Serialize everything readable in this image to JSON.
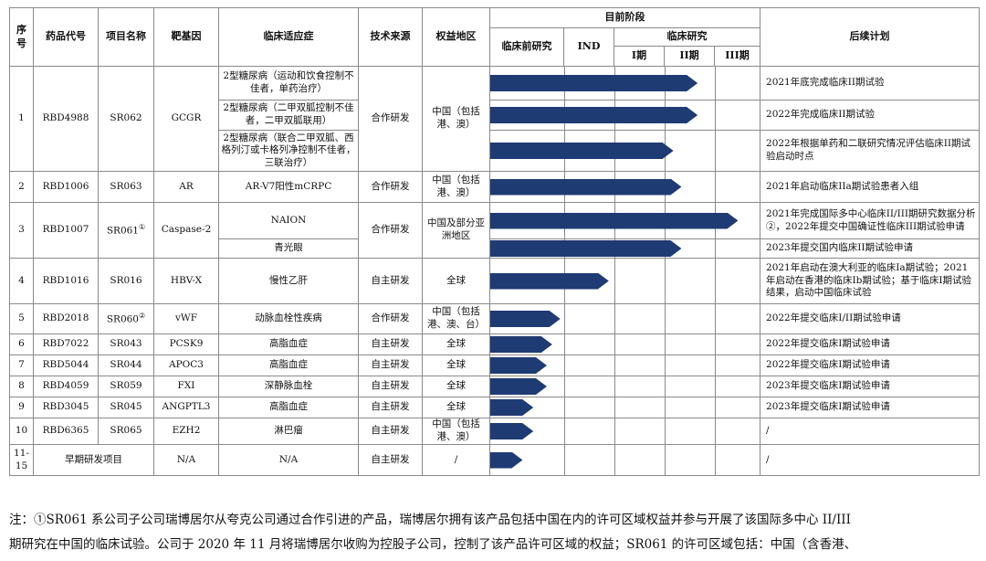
{
  "header": {
    "seq": "序号",
    "drug_code": "药品代号",
    "project_name": "项目名称",
    "target": "靶基因",
    "indication": "临床适应症",
    "tech_source": "技术来源",
    "rights_region": "权益地区",
    "current_stage": "目前阶段",
    "preclinical": "临床前研究",
    "ind": "IND",
    "clinical": "临床研究",
    "phase1": "I期",
    "phase2": "II期",
    "phase3": "III期",
    "follow_up": "后续计划"
  },
  "stages": [
    "临床前研究",
    "IND",
    "I期",
    "II期",
    "III期"
  ],
  "rows": [
    {
      "seq": "1",
      "drug": "RBD4988",
      "project": "SR062",
      "target": "GCGR",
      "source": "合作研发",
      "region": "中国（包括港、澳）",
      "subs": [
        {
          "indication": "2型糖尿病（运动和饮食控制不佳者，单药治疗）",
          "progress": 0.77,
          "plan": "2021年底完成临床II期试验"
        },
        {
          "indication": "2型糖尿病（二甲双胍控制不佳者，二甲双胍联用）",
          "progress": 0.77,
          "plan": "2022年完成临床II期试验"
        },
        {
          "indication": "2型糖尿病（联合二甲双胍、西格列汀或卡格列净控制不佳者，三联治疗）",
          "progress": 0.68,
          "plan": "2022年根据单药和二联研究情况评估临床II期试验启动时点"
        }
      ]
    },
    {
      "seq": "2",
      "drug": "RBD1006",
      "project": "SR063",
      "target": "AR",
      "source": "合作研发",
      "region": "中国（包括港、澳）",
      "subs": [
        {
          "indication": "AR-V7阳性mCRPC",
          "progress": 0.71,
          "plan": "2021年启动临床IIa期试验患者入组"
        }
      ]
    },
    {
      "seq": "3",
      "drug": "RBD1007",
      "project": "SR061",
      "project_mark": "①",
      "target": "Caspase-2",
      "source": "合作研发",
      "region": "中国及部分亚洲地区",
      "subs": [
        {
          "indication": "NAION",
          "progress": 0.92,
          "plan": "2021年完成国际多中心临床II/III期研究数据分析②，2022年提交中国确证性临床III期试验申请"
        },
        {
          "indication": "青光眼",
          "progress": 0.71,
          "plan": "2023年提交国内临床II期试验申请"
        }
      ]
    },
    {
      "seq": "4",
      "drug": "RBD1016",
      "project": "SR016",
      "target": "HBV-X",
      "source": "自主研发",
      "region": "全球",
      "subs": [
        {
          "indication": "慢性乙肝",
          "progress": 0.44,
          "plan": "2021年启动在澳大利亚的临床Ia期试验；2021年启动在香港的临床Ib期试验；基于临床I期试验结果，启动中国临床试验"
        }
      ]
    },
    {
      "seq": "5",
      "drug": "RBD2018",
      "project": "SR060",
      "project_mark": "②",
      "target": "vWF",
      "source": "合作研发",
      "region": "中国（包括港、澳、台）",
      "subs": [
        {
          "indication": "动脉血栓性疾病",
          "progress": 0.26,
          "plan": "2022年提交临床I/II期试验申请"
        }
      ]
    },
    {
      "seq": "6",
      "drug": "RBD7022",
      "project": "SR043",
      "target": "PCSK9",
      "source": "自主研发",
      "region": "全球",
      "subs": [
        {
          "indication": "高脂血症",
          "progress": 0.23,
          "plan": "2022年提交临床I期试验申请"
        }
      ]
    },
    {
      "seq": "7",
      "drug": "RBD5044",
      "project": "SR044",
      "target": "APOC3",
      "source": "自主研发",
      "region": "全球",
      "subs": [
        {
          "indication": "高脂血症",
          "progress": 0.21,
          "plan": "2022年提交临床I期试验申请"
        }
      ]
    },
    {
      "seq": "8",
      "drug": "RBD4059",
      "project": "SR059",
      "target": "FXI",
      "source": "自主研发",
      "region": "全球",
      "subs": [
        {
          "indication": "深静脉血栓",
          "progress": 0.21,
          "plan": "2023年提交临床I期试验申请"
        }
      ]
    },
    {
      "seq": "9",
      "drug": "RBD3045",
      "project": "SR045",
      "target": "ANGPTL3",
      "source": "自主研发",
      "region": "全球",
      "subs": [
        {
          "indication": "高脂血症",
          "progress": 0.16,
          "plan": "2023年提交临床I期试验申请"
        }
      ]
    },
    {
      "seq": "10",
      "drug": "RBD6365",
      "project": "SR065",
      "target": "EZH2",
      "source": "自主研发",
      "region": "中国（包括港、澳）",
      "subs": [
        {
          "indication": "淋巴瘤",
          "progress": 0.16,
          "plan": "/"
        }
      ]
    },
    {
      "seq": "11-15",
      "drug": "早期研发项目",
      "merged_drug_project": true,
      "target": "N/A",
      "source": "自主研发",
      "region": "/",
      "subs": [
        {
          "indication": "N/A",
          "progress": 0.12,
          "plan": "/"
        }
      ]
    }
  ],
  "note": {
    "line1": "注：①SR061 系公司子公司瑞博居尔从夸克公司通过合作引进的产品，瑞博居尔拥有该产品包括中国在内的许可区域权益并参与开展了该国际多中心 II/III",
    "line2": "期研究在中国的临床试验。公司于 2020 年 11 月将瑞博居尔收购为控股子公司，控制了该产品许可区域的权益；SR061 的许可区域包括：中国（含香港、"
  },
  "colors": {
    "bar": "#1f3b73",
    "border": "#8a8a8a"
  }
}
